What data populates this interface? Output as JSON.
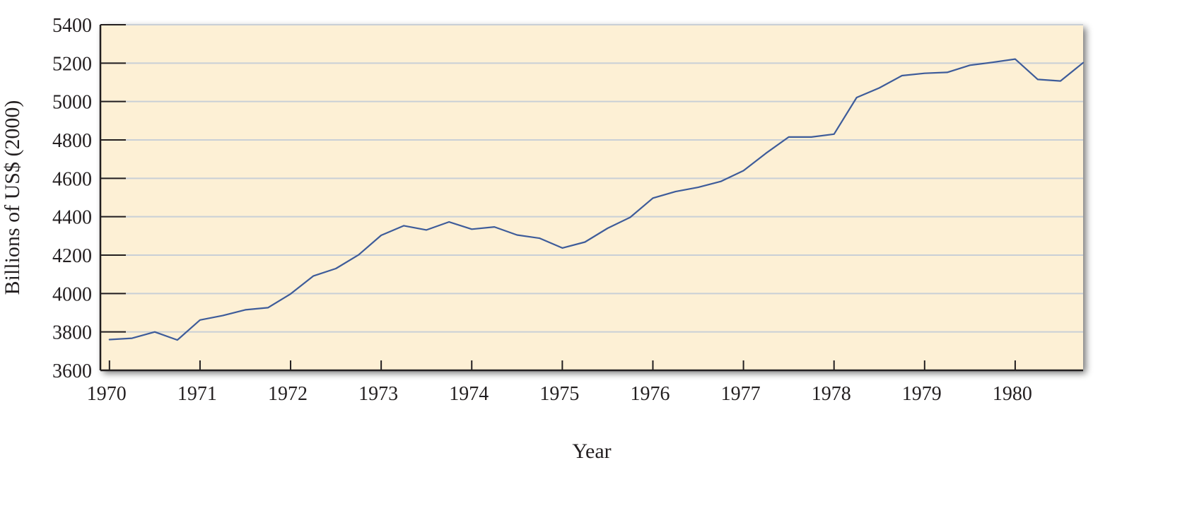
{
  "chart_data": {
    "type": "line",
    "title": "",
    "xlabel": "Year",
    "ylabel": "Billions of US$ (2000)",
    "ylim": [
      3600,
      5400
    ],
    "xlim": [
      1969.9,
      1980.75
    ],
    "y_ticks": [
      3600,
      3800,
      4000,
      4200,
      4400,
      4600,
      4800,
      5000,
      5200,
      5400
    ],
    "x_ticks": [
      1970,
      1971,
      1972,
      1973,
      1974,
      1975,
      1976,
      1977,
      1978,
      1979,
      1980
    ],
    "y_tick_labels": [
      "3600",
      "3800",
      "4000",
      "4200",
      "4400",
      "4600",
      "4800",
      "5000",
      "5200",
      "5400"
    ],
    "x_tick_labels": [
      "1970",
      "1971",
      "1972",
      "1973",
      "1974",
      "1975",
      "1976",
      "1977",
      "1978",
      "1979",
      "1980"
    ],
    "grid": "horizontal",
    "legend": "none",
    "colors": {
      "plot_background": "#fdf0d5",
      "line": "#3e5c9a",
      "gridline": "#c9cfd6",
      "axis": "#231f20",
      "shadow": "#8a8a8a"
    },
    "series": [
      {
        "x": [
          1970,
          1970.25,
          1970.5,
          1970.75,
          1971,
          1971.25,
          1971.5,
          1971.75,
          1972,
          1972.25,
          1972.5,
          1972.75,
          1973,
          1973.25,
          1973.5,
          1973.75,
          1974,
          1974.25,
          1974.5,
          1974.75,
          1975,
          1975.25,
          1975.5,
          1975.75,
          1976,
          1976.25,
          1976.5,
          1976.75,
          1977,
          1977.25,
          1977.5,
          1977.75,
          1978,
          1978.25,
          1978.5,
          1978.75,
          1979,
          1979.25,
          1979.5,
          1979.75,
          1980,
          1980.25,
          1980.5,
          1980.75
        ],
        "values": [
          3760,
          3767,
          3800,
          3758,
          3862,
          3885,
          3915,
          3926,
          3998,
          4091,
          4130,
          4201,
          4303,
          4353,
          4331,
          4373,
          4335,
          4347,
          4305,
          4288,
          4237,
          4268,
          4340,
          4397,
          4497,
          4531,
          4553,
          4584,
          4640,
          4731,
          4815,
          4815,
          4830,
          5021,
          5071,
          5135,
          5147,
          5152,
          5189,
          5204,
          5221,
          5115,
          5107,
          5202
        ]
      }
    ]
  }
}
